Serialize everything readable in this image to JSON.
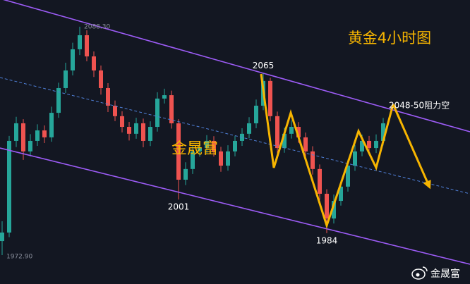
{
  "chart_data": {
    "type": "candlestick",
    "title": "黄金4小时图",
    "watermark": "金晟富",
    "note": "2048-50阻力空",
    "footer": "金晟富",
    "up_color": "#26a69a",
    "down_color": "#ef5350",
    "ylim": [
      1958.3,
      2101.8
    ],
    "open": [
      1980.0,
      1984.3,
      2030.6,
      2039.5,
      2025.3,
      2030.6,
      2035.9,
      2032.4,
      2044.8,
      2057.3,
      2066.2,
      2076.9,
      2084.0,
      2073.3,
      2066.2,
      2057.3,
      2048.4,
      2043.1,
      2037.7,
      2034.2,
      2039.5,
      2030.6,
      2037.7,
      2052.0,
      2053.7,
      2039.5,
      2011.0,
      2016.4,
      2025.3,
      2027.0,
      2030.6,
      2025.3,
      2018.1,
      2025.3,
      2030.6,
      2034.2,
      2039.5,
      2048.4,
      2060.9,
      2043.1,
      2027.0,
      2034.2,
      2037.7,
      2032.4,
      2025.3,
      2016.4,
      2003.9,
      1991.4,
      2000.3,
      2007.5,
      2018.1,
      2025.3,
      2030.6,
      2027.0,
      2030.6
    ],
    "high": [
      1990.0,
      2033.1,
      2042.8,
      2041.6,
      2034.0,
      2039.0,
      2038.4,
      2047.9,
      2060.0,
      2070.1,
      2080.2,
      2088.3,
      2086.5,
      2075.8,
      2068.7,
      2059.8,
      2051.0,
      2045.6,
      2040.2,
      2042.3,
      2041.9,
      2040.5,
      2055.2,
      2057.0,
      2056.0,
      2041.6,
      2019.8,
      2028.0,
      2030.2,
      2033.5,
      2033.0,
      2027.6,
      2028.4,
      2033.2,
      2037.0,
      2042.6,
      2051.5,
      2065.0,
      2062.5,
      2045.4,
      2037.3,
      2041.0,
      2040.1,
      2034.8,
      2027.9,
      2018.7,
      2006.2,
      2003.5,
      2010.6,
      2021.2,
      2028.6,
      2033.8,
      2033.1,
      2033.9,
      2042.2
    ],
    "low": [
      1972.9,
      1982.0,
      2027.5,
      2021.0,
      2022.8,
      2028.1,
      2029.5,
      2030.2,
      2042.3,
      2054.8,
      2063.7,
      2074.0,
      2070.8,
      2062.9,
      2054.0,
      2045.2,
      2040.6,
      2034.9,
      2030.8,
      2031.7,
      2027.4,
      2028.0,
      2035.3,
      2049.5,
      2036.8,
      2001.0,
      2008.3,
      2013.9,
      2022.6,
      2024.4,
      2022.7,
      2015.0,
      2015.6,
      2022.8,
      2028.1,
      2031.9,
      2037.0,
      2046.1,
      2040.5,
      2024.1,
      2024.6,
      2031.8,
      2029.6,
      2022.5,
      2013.6,
      2000.8,
      1984.0,
      1988.9,
      1997.9,
      2005.0,
      2015.5,
      2022.9,
      2024.3,
      2024.5,
      2028.3
    ],
    "close": [
      1984.3,
      2030.6,
      2039.5,
      2025.3,
      2030.6,
      2035.9,
      2032.4,
      2044.8,
      2057.3,
      2066.2,
      2076.9,
      2084.0,
      2073.3,
      2066.2,
      2057.3,
      2048.4,
      2043.1,
      2037.7,
      2034.2,
      2039.5,
      2030.6,
      2037.7,
      2052.0,
      2053.7,
      2039.5,
      2011.0,
      2016.4,
      2025.3,
      2027.0,
      2030.6,
      2025.3,
      2018.1,
      2025.3,
      2030.6,
      2034.2,
      2039.5,
      2048.4,
      2060.9,
      2043.1,
      2027.0,
      2034.2,
      2037.7,
      2032.4,
      2025.3,
      2016.4,
      2003.9,
      1991.4,
      2000.3,
      2007.5,
      2018.1,
      2025.3,
      2030.6,
      2027.0,
      2030.6,
      2039.5
    ],
    "annotations": [
      {
        "value": 2088.3,
        "label": "2088.30"
      },
      {
        "value": 1972.9,
        "label": "1972.90"
      },
      2065,
      2001,
      1984
    ]
  }
}
